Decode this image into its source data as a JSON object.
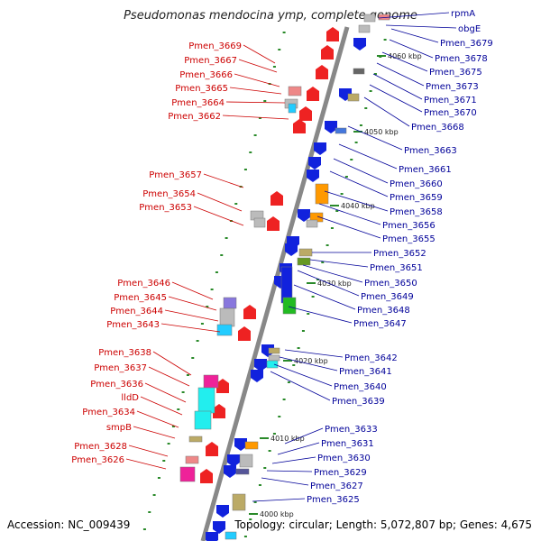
{
  "title": "Pseudomonas mendocina ymp, complete genome",
  "accession": "Accession: NC_009439",
  "topology": "Topology: circular; Length: 5,072,807 bp; Genes: 4,675",
  "colors": {
    "left_label": "#cc0000",
    "right_label": "#000099",
    "backbone": "#888888"
  },
  "kbp_ticks": [
    {
      "label": "4060 kbp"
    },
    {
      "label": "4050 kbp"
    },
    {
      "label": "4040 kbp"
    },
    {
      "label": "4030 kbp"
    },
    {
      "label": "4020 kbp"
    },
    {
      "label": "4010 kbp"
    },
    {
      "label": "4000 kbp"
    }
  ],
  "left_genes": [
    "Pmen_3669",
    "Pmen_3667",
    "Pmen_3666",
    "Pmen_3665",
    "Pmen_3664",
    "Pmen_3662",
    "Pmen_3657",
    "Pmen_3654",
    "Pmen_3653",
    "Pmen_3646",
    "Pmen_3645",
    "Pmen_3644",
    "Pmen_3643",
    "Pmen_3638",
    "Pmen_3637",
    "Pmen_3636",
    "lldD",
    "Pmen_3634",
    "smpB",
    "Pmen_3628",
    "Pmen_3626"
  ],
  "right_genes": [
    "rpmA",
    "obgE",
    "Pmen_3679",
    "Pmen_3678",
    "Pmen_3675",
    "Pmen_3673",
    "Pmen_3671",
    "Pmen_3670",
    "Pmen_3668",
    "Pmen_3663",
    "Pmen_3661",
    "Pmen_3660",
    "Pmen_3659",
    "Pmen_3658",
    "Pmen_3656",
    "Pmen_3655",
    "Pmen_3652",
    "Pmen_3651",
    "Pmen_3650",
    "Pmen_3649",
    "Pmen_3648",
    "Pmen_3647",
    "Pmen_3642",
    "Pmen_3641",
    "Pmen_3640",
    "Pmen_3639",
    "Pmen_3633",
    "Pmen_3631",
    "Pmen_3630",
    "Pmen_3629",
    "Pmen_3627",
    "Pmen_3625"
  ]
}
